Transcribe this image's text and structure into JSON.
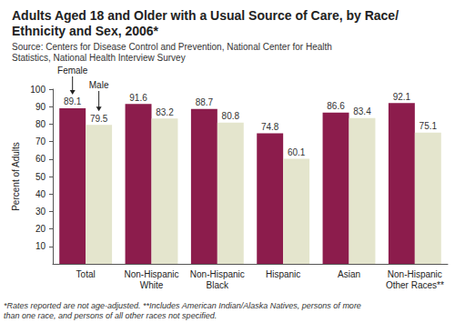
{
  "chart_data": {
    "type": "bar",
    "title": "Adults Aged 18 and Older with a Usual Source of Care, by Race/Ethnicity and Sex, 2006*",
    "subtitle": "Source: Centers for Disease Control and Prevention, National Center for Health Statistics, National Health Interview Survey",
    "footnote": "*Rates reported are not age-adjusted. **Includes American Indian/Alaska Natives, persons of more than one race, and persons of all other races not specified.",
    "ylabel": "Percent of Adults",
    "categories": [
      "Total",
      "Non-Hispanic White",
      "Non-Hispanic Black",
      "Hispanic",
      "Asian",
      "Non-Hispanic Other Races**"
    ],
    "series": [
      {
        "name": "Female",
        "color": "#8c1c4c",
        "values": [
          89.1,
          91.6,
          88.7,
          74.8,
          86.6,
          92.1
        ]
      },
      {
        "name": "Male",
        "color": "#e4e5cd",
        "values": [
          79.5,
          83.2,
          80.8,
          60.1,
          83.4,
          75.1
        ]
      }
    ],
    "ylim": [
      0,
      100
    ],
    "yticks": [
      10,
      20,
      30,
      40,
      50,
      60,
      70,
      80,
      90,
      100
    ],
    "grid": false,
    "data_labels": true
  }
}
